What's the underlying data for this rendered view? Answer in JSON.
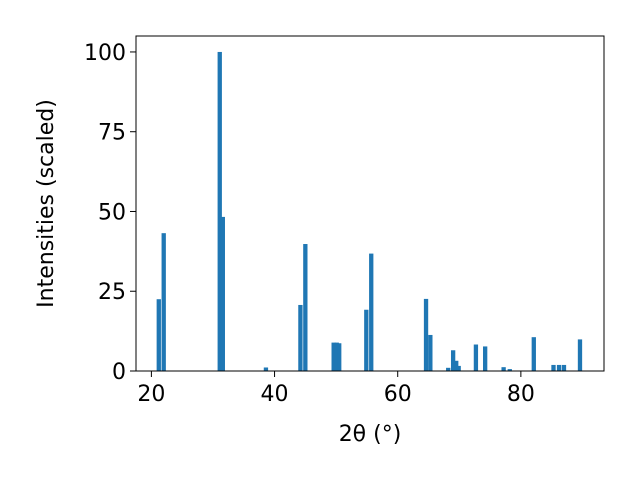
{
  "chart_data": {
    "type": "bar",
    "title": "",
    "xlabel": "2θ (°)",
    "ylabel": "Intensities (scaled)",
    "xlim": [
      17.5,
      93.5
    ],
    "ylim": [
      0,
      105
    ],
    "xticks": [
      20,
      40,
      60,
      80
    ],
    "yticks": [
      0,
      25,
      50,
      75,
      100
    ],
    "grid": false,
    "legend": "none",
    "bar_width": 0.7,
    "color": "#1f77b4",
    "series": [
      {
        "x": [
          21.2,
          22.0,
          31.1,
          31.6,
          38.6,
          44.2,
          45.0,
          49.6,
          50.1,
          50.5,
          54.9,
          55.7,
          64.6,
          65.3,
          68.2,
          69.0,
          69.5,
          69.9,
          72.7,
          74.2,
          77.2,
          78.2,
          82.1,
          85.3,
          86.2,
          87.0,
          89.6
        ],
        "values": [
          22.5,
          43.2,
          100.0,
          48.3,
          1.1,
          20.7,
          39.8,
          8.9,
          8.9,
          8.7,
          19.2,
          36.8,
          22.6,
          11.3,
          1.0,
          6.5,
          3.2,
          1.6,
          8.3,
          7.7,
          1.2,
          0.6,
          10.6,
          1.9,
          1.9,
          1.9,
          9.9
        ]
      }
    ]
  }
}
